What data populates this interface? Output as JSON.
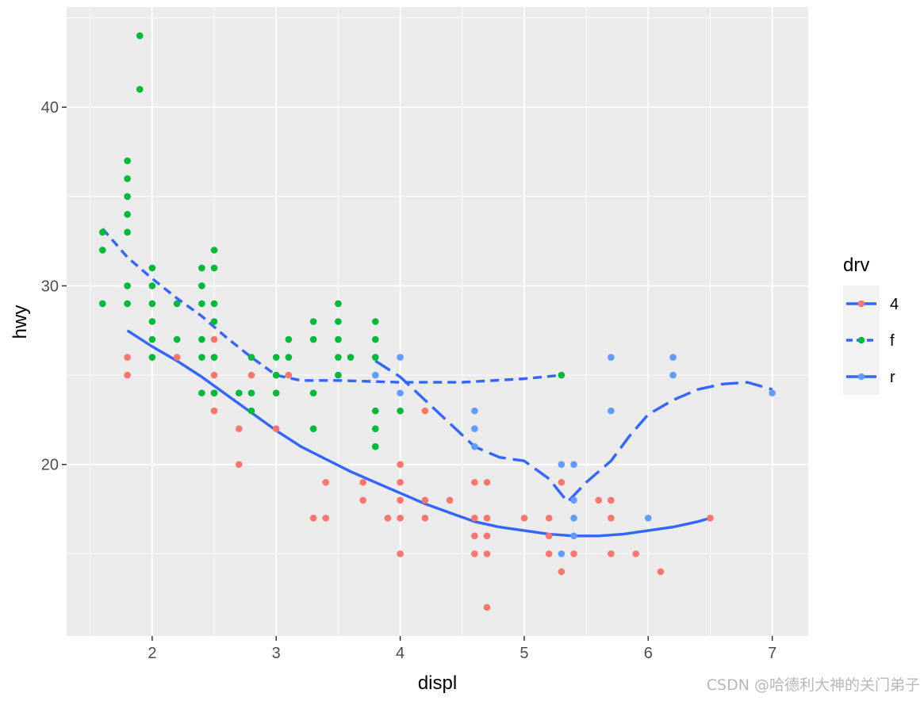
{
  "chart_data": {
    "type": "scatter",
    "xlabel": "displ",
    "ylabel": "hwy",
    "xlim": [
      1.31,
      7.29
    ],
    "ylim": [
      10.4,
      45.6
    ],
    "x_ticks": [
      2,
      3,
      4,
      5,
      6,
      7
    ],
    "y_ticks": [
      20,
      30,
      40
    ],
    "x_tick_labels": [
      "2",
      "3",
      "4",
      "5",
      "6",
      "7"
    ],
    "y_tick_labels": [
      "20",
      "30",
      "40"
    ],
    "grid": true,
    "legend": {
      "title": "drv",
      "placement": "right",
      "entries": [
        {
          "label": "4",
          "color": "#F8766D",
          "linestyle": "solid"
        },
        {
          "label": "f",
          "color": "#00BA38",
          "linestyle": "dashed"
        },
        {
          "label": "r",
          "color": "#619CFF",
          "linestyle": "longdash"
        }
      ]
    },
    "series": [
      {
        "name": "4",
        "color": "#F8766D",
        "points": [
          [
            1.8,
            26
          ],
          [
            1.8,
            25
          ],
          [
            2.2,
            26
          ],
          [
            2.5,
            27
          ],
          [
            2.5,
            26
          ],
          [
            2.5,
            25
          ],
          [
            2.5,
            24
          ],
          [
            2.5,
            23
          ],
          [
            2.7,
            22
          ],
          [
            2.7,
            20
          ],
          [
            2.8,
            25
          ],
          [
            3.0,
            22
          ],
          [
            3.1,
            25
          ],
          [
            3.3,
            17
          ],
          [
            3.4,
            19
          ],
          [
            3.4,
            17
          ],
          [
            3.7,
            19
          ],
          [
            3.7,
            18
          ],
          [
            3.9,
            17
          ],
          [
            4.0,
            20
          ],
          [
            4.0,
            19
          ],
          [
            4.0,
            18
          ],
          [
            4.0,
            17
          ],
          [
            4.0,
            15
          ],
          [
            4.2,
            23
          ],
          [
            4.2,
            18
          ],
          [
            4.2,
            17
          ],
          [
            4.4,
            18
          ],
          [
            4.6,
            19
          ],
          [
            4.6,
            17
          ],
          [
            4.6,
            16
          ],
          [
            4.6,
            15
          ],
          [
            4.7,
            19
          ],
          [
            4.7,
            17
          ],
          [
            4.7,
            16
          ],
          [
            4.7,
            15
          ],
          [
            4.7,
            12
          ],
          [
            5.0,
            17
          ],
          [
            5.2,
            17
          ],
          [
            5.2,
            16
          ],
          [
            5.2,
            15
          ],
          [
            5.3,
            19
          ],
          [
            5.3,
            14
          ],
          [
            5.4,
            15
          ],
          [
            5.6,
            18
          ],
          [
            5.7,
            18
          ],
          [
            5.7,
            17
          ],
          [
            5.7,
            15
          ],
          [
            5.9,
            15
          ],
          [
            6.1,
            14
          ],
          [
            6.5,
            17
          ]
        ],
        "smooth": [
          [
            1.8,
            27.5
          ],
          [
            2.0,
            26.6
          ],
          [
            2.2,
            25.8
          ],
          [
            2.4,
            24.9
          ],
          [
            2.6,
            23.9
          ],
          [
            2.8,
            22.9
          ],
          [
            3.0,
            21.9
          ],
          [
            3.2,
            21.0
          ],
          [
            3.4,
            20.3
          ],
          [
            3.6,
            19.6
          ],
          [
            3.8,
            19.0
          ],
          [
            4.0,
            18.4
          ],
          [
            4.2,
            17.8
          ],
          [
            4.4,
            17.3
          ],
          [
            4.6,
            16.8
          ],
          [
            4.8,
            16.5
          ],
          [
            5.0,
            16.3
          ],
          [
            5.2,
            16.1
          ],
          [
            5.4,
            16.0
          ],
          [
            5.6,
            16.0
          ],
          [
            5.8,
            16.1
          ],
          [
            6.0,
            16.3
          ],
          [
            6.2,
            16.5
          ],
          [
            6.4,
            16.8
          ],
          [
            6.5,
            17.0
          ]
        ]
      },
      {
        "name": "f",
        "color": "#00BA38",
        "points": [
          [
            1.6,
            33
          ],
          [
            1.6,
            32
          ],
          [
            1.6,
            29
          ],
          [
            1.8,
            37
          ],
          [
            1.8,
            36
          ],
          [
            1.8,
            35
          ],
          [
            1.8,
            34
          ],
          [
            1.8,
            33
          ],
          [
            1.8,
            30
          ],
          [
            1.8,
            29
          ],
          [
            1.9,
            44
          ],
          [
            1.9,
            41
          ],
          [
            2.0,
            31
          ],
          [
            2.0,
            30
          ],
          [
            2.0,
            29
          ],
          [
            2.0,
            28
          ],
          [
            2.0,
            27
          ],
          [
            2.0,
            26
          ],
          [
            2.2,
            29
          ],
          [
            2.2,
            27
          ],
          [
            2.4,
            31
          ],
          [
            2.4,
            30
          ],
          [
            2.4,
            29
          ],
          [
            2.4,
            27
          ],
          [
            2.4,
            26
          ],
          [
            2.4,
            24
          ],
          [
            2.5,
            32
          ],
          [
            2.5,
            31
          ],
          [
            2.5,
            29
          ],
          [
            2.5,
            28
          ],
          [
            2.5,
            26
          ],
          [
            2.5,
            24
          ],
          [
            2.7,
            24
          ],
          [
            2.8,
            26
          ],
          [
            2.8,
            24
          ],
          [
            2.8,
            23
          ],
          [
            3.0,
            26
          ],
          [
            3.0,
            25
          ],
          [
            3.0,
            24
          ],
          [
            3.1,
            27
          ],
          [
            3.1,
            26
          ],
          [
            3.3,
            28
          ],
          [
            3.3,
            27
          ],
          [
            3.3,
            24
          ],
          [
            3.3,
            22
          ],
          [
            3.5,
            29
          ],
          [
            3.5,
            28
          ],
          [
            3.5,
            27
          ],
          [
            3.5,
            26
          ],
          [
            3.5,
            25
          ],
          [
            3.6,
            26
          ],
          [
            3.8,
            28
          ],
          [
            3.8,
            27
          ],
          [
            3.8,
            26
          ],
          [
            3.8,
            23
          ],
          [
            3.8,
            22
          ],
          [
            3.8,
            21
          ],
          [
            4.0,
            23
          ],
          [
            5.3,
            25
          ]
        ],
        "smooth": [
          [
            1.6,
            33.2
          ],
          [
            1.8,
            31.6
          ],
          [
            2.0,
            30.4
          ],
          [
            2.2,
            29.3
          ],
          [
            2.4,
            28.3
          ],
          [
            2.6,
            27.1
          ],
          [
            2.8,
            26.0
          ],
          [
            3.0,
            25.0
          ],
          [
            3.2,
            24.7
          ],
          [
            3.5,
            24.7
          ],
          [
            4.0,
            24.6
          ],
          [
            4.5,
            24.6
          ],
          [
            5.0,
            24.8
          ],
          [
            5.3,
            25.0
          ]
        ]
      },
      {
        "name": "r",
        "color": "#619CFF",
        "points": [
          [
            3.8,
            25
          ],
          [
            4.0,
            26
          ],
          [
            4.0,
            24
          ],
          [
            4.6,
            23
          ],
          [
            4.6,
            22
          ],
          [
            4.6,
            21
          ],
          [
            5.3,
            20
          ],
          [
            5.3,
            15
          ],
          [
            5.4,
            20
          ],
          [
            5.4,
            18
          ],
          [
            5.4,
            17
          ],
          [
            5.4,
            16
          ],
          [
            5.7,
            26
          ],
          [
            5.7,
            23
          ],
          [
            6.0,
            17
          ],
          [
            6.2,
            26
          ],
          [
            6.2,
            25
          ],
          [
            7.0,
            24
          ]
        ],
        "smooth": [
          [
            3.8,
            25.8
          ],
          [
            4.0,
            24.9
          ],
          [
            4.2,
            23.6
          ],
          [
            4.4,
            22.3
          ],
          [
            4.6,
            21.0
          ],
          [
            4.8,
            20.4
          ],
          [
            5.0,
            20.2
          ],
          [
            5.2,
            19.2
          ],
          [
            5.35,
            17.9
          ],
          [
            5.5,
            19.0
          ],
          [
            5.7,
            20.2
          ],
          [
            5.85,
            21.6
          ],
          [
            6.0,
            22.8
          ],
          [
            6.2,
            23.6
          ],
          [
            6.4,
            24.2
          ],
          [
            6.6,
            24.5
          ],
          [
            6.8,
            24.6
          ],
          [
            7.0,
            24.2
          ]
        ]
      }
    ],
    "smooth_color": "#3366FF"
  },
  "watermark": "CSDN @哈德利大神的关门弟子"
}
